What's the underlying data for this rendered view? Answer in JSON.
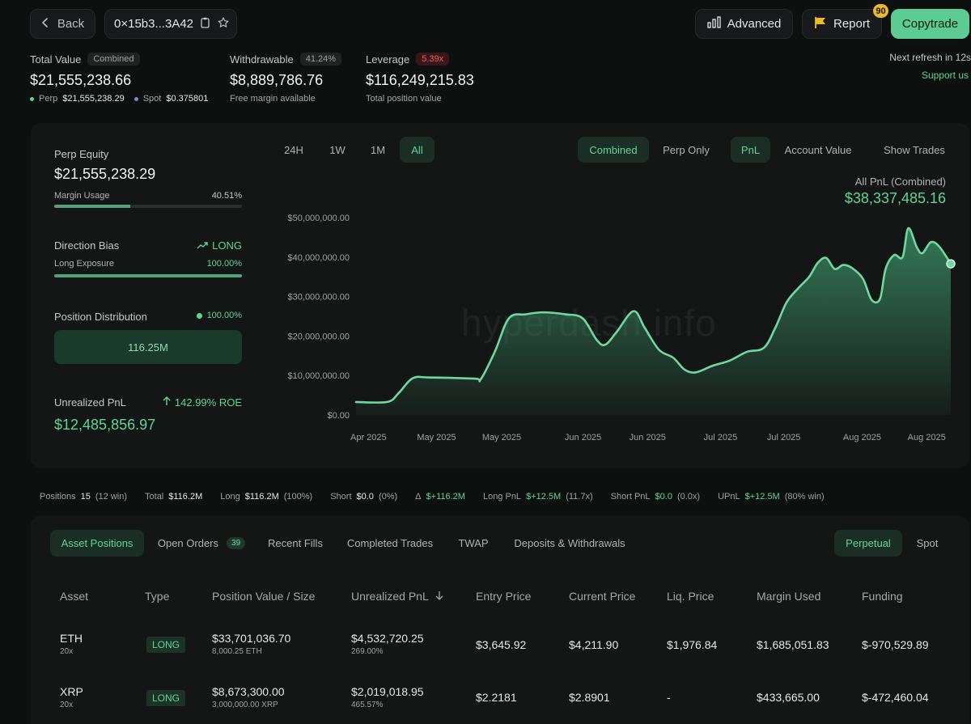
{
  "topbar": {
    "back_label": "Back",
    "address": "0×15b3...3A42",
    "advanced_label": "Advanced",
    "report_label": "Report",
    "report_badge": "90",
    "copytrade_label": "Copytrade",
    "next_refresh": "Next refresh in 12s",
    "support": "Support us"
  },
  "summary": {
    "total_value_label": "Total Value",
    "total_value_pill": "Combined",
    "total_value": "$21,555,238.66",
    "perp_label": "Perp",
    "perp_value": "$21,555,238.29",
    "spot_label": "Spot",
    "spot_value": "$0.375801",
    "withdrawable_label": "Withdrawable",
    "withdrawable_pill": "41.24%",
    "withdrawable_value": "$8,889,786.76",
    "withdrawable_sub": "Free margin available",
    "leverage_label": "Leverage",
    "leverage_pill": "5.39x",
    "leverage_value": "$116,249,215.83",
    "leverage_sub": "Total position value"
  },
  "left_panel": {
    "perp_equity_label": "Perp Equity",
    "perp_equity_value": "$21,555,238.29",
    "margin_usage_label": "Margin Usage",
    "margin_usage_value": "40.51%",
    "margin_usage_fraction": 0.4051,
    "direction_bias_label": "Direction Bias",
    "direction_bias_value": "LONG",
    "long_exposure_label": "Long Exposure",
    "long_exposure_value": "100.00%",
    "long_exposure_fraction": 1.0,
    "position_distribution_label": "Position Distribution",
    "position_distribution_pct": "100.00%",
    "position_distribution_value": "116.25M",
    "unrealized_pnl_label": "Unrealized PnL",
    "unrealized_pnl_roe": "142.99% ROE",
    "unrealized_pnl_value": "$12,485,856.97"
  },
  "chart_controls": {
    "ranges": [
      "24H",
      "1W",
      "1M",
      "All"
    ],
    "active_range": "All",
    "mode_combined": "Combined",
    "mode_perp_only": "Perp Only",
    "metric_pnl": "PnL",
    "metric_account_value": "Account Value",
    "show_trades": "Show Trades",
    "pnl_title": "All PnL (Combined)",
    "pnl_value": "$38,337,485.16"
  },
  "watermark": "hyperdash.info",
  "chart_data": {
    "type": "area",
    "title": "",
    "xlabel": "",
    "ylabel": "",
    "color": "#5fd49a",
    "ylim": [
      0,
      50000000
    ],
    "y_ticks": [
      "$0.00",
      "$10,000,000.00",
      "$20,000,000.00",
      "$30,000,000.00",
      "$40,000,000.00",
      "$50,000,000.00"
    ],
    "x_ticks": [
      "Apr 2025",
      "May 2025",
      "May 2025",
      "Jun 2025",
      "Jun 2025",
      "Jul 2025",
      "Jul 2025",
      "Aug 2025",
      "Aug 2025"
    ],
    "x_tick_positions": [
      0.034,
      0.147,
      0.255,
      0.39,
      0.497,
      0.618,
      0.723,
      0.853,
      0.96
    ],
    "points": [
      [
        0.0,
        3.3
      ],
      [
        0.055,
        3.3
      ],
      [
        0.075,
        5.5
      ],
      [
        0.1,
        9.3
      ],
      [
        0.13,
        9.5
      ],
      [
        0.21,
        9.2
      ],
      [
        0.22,
        9.0
      ],
      [
        0.245,
        16
      ],
      [
        0.27,
        24.5
      ],
      [
        0.3,
        25.5
      ],
      [
        0.33,
        26
      ],
      [
        0.37,
        25.5
      ],
      [
        0.4,
        24.5
      ],
      [
        0.425,
        19
      ],
      [
        0.44,
        17.8
      ],
      [
        0.46,
        21
      ],
      [
        0.49,
        26.3
      ],
      [
        0.51,
        22
      ],
      [
        0.535,
        16.5
      ],
      [
        0.56,
        14.5
      ],
      [
        0.58,
        11.5
      ],
      [
        0.6,
        10.8
      ],
      [
        0.63,
        12.5
      ],
      [
        0.66,
        13.8
      ],
      [
        0.69,
        16
      ],
      [
        0.72,
        17
      ],
      [
        0.74,
        22
      ],
      [
        0.76,
        28.5
      ],
      [
        0.78,
        32
      ],
      [
        0.8,
        35
      ],
      [
        0.815,
        38.5
      ],
      [
        0.83,
        39.8
      ],
      [
        0.845,
        37
      ],
      [
        0.86,
        38
      ],
      [
        0.875,
        37.3
      ],
      [
        0.895,
        34.5
      ],
      [
        0.91,
        29.2
      ],
      [
        0.925,
        29.4
      ],
      [
        0.935,
        37
      ],
      [
        0.95,
        40.5
      ],
      [
        0.965,
        40
      ],
      [
        0.975,
        47.3
      ],
      [
        0.99,
        42.5
      ],
      [
        1.0,
        41
      ],
      [
        1.015,
        43.8
      ],
      [
        1.03,
        42.6
      ],
      [
        1.05,
        38.3
      ]
    ]
  },
  "stats_strip": {
    "positions_label": "Positions",
    "positions_value": "15",
    "positions_win": "(12 win)",
    "total_label": "Total",
    "total_value": "$116.2M",
    "long_label": "Long",
    "long_value": "$116.2M",
    "long_pct": "(100%)",
    "short_label": "Short",
    "short_value": "$0.0",
    "short_pct": "(0%)",
    "delta_label": "Δ",
    "delta_value": "$+116.2M",
    "long_pnl_label": "Long PnL",
    "long_pnl_value": "$+12.5M",
    "long_pnl_x": "(11.7x)",
    "short_pnl_label": "Short PnL",
    "short_pnl_value": "$0.0",
    "short_pnl_x": "(0.0x)",
    "upnl_label": "UPnL",
    "upnl_value": "$+12.5M",
    "upnl_win": "(80% win)"
  },
  "bottom_tabs": {
    "asset_positions": "Asset Positions",
    "open_orders": "Open Orders",
    "open_orders_count": "39",
    "recent_fills": "Recent Fills",
    "completed_trades": "Completed Trades",
    "twap": "TWAP",
    "deposits": "Deposits & Withdrawals",
    "perpetual": "Perpetual",
    "spot": "Spot"
  },
  "table": {
    "headers": [
      "Asset",
      "Type",
      "Position Value / Size",
      "Unrealized PnL",
      "Entry Price",
      "Current Price",
      "Liq. Price",
      "Margin Used",
      "Funding"
    ],
    "rows": [
      {
        "asset": "ETH",
        "leverage": "20x",
        "type": "LONG",
        "value": "$33,701,036.70",
        "size": "8,000.25 ETH",
        "upnl": "$4,532,720.25",
        "upnl_pct": "269.00%",
        "entry": "$3,645.92",
        "current": "$4,211.90",
        "liq": "$1,976.84",
        "margin": "$1,685,051.83",
        "funding": "$-970,529.89"
      },
      {
        "asset": "XRP",
        "leverage": "20x",
        "type": "LONG",
        "value": "$8,673,300.00",
        "size": "3,000,000.00 XRP",
        "upnl": "$2,019,018.95",
        "upnl_pct": "465.57%",
        "entry": "$2.2181",
        "current": "$2.8901",
        "liq": "-",
        "margin": "$433,665.00",
        "funding": "$-472,460.04"
      }
    ]
  }
}
